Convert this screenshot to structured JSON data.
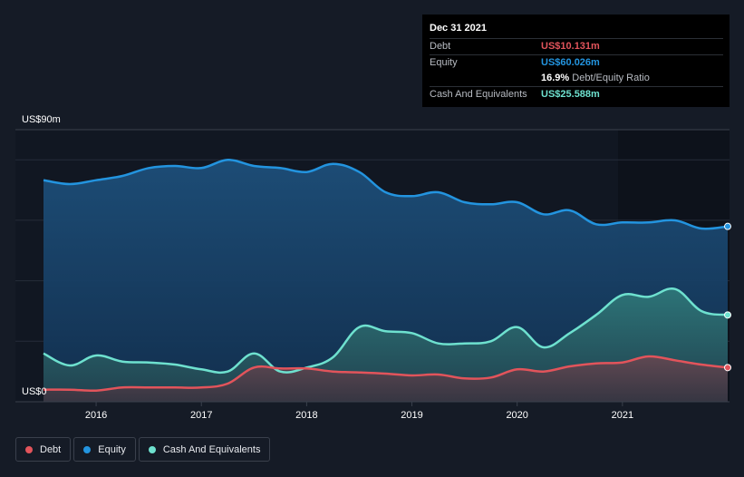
{
  "tooltip": {
    "date": "Dec 31 2021",
    "debt_label": "Debt",
    "debt_value": "US$10.131m",
    "equity_label": "Equity",
    "equity_value": "US$60.026m",
    "ratio_value": "16.9%",
    "ratio_label": "Debt/Equity Ratio",
    "cash_label": "Cash And Equivalents",
    "cash_value": "US$25.588m"
  },
  "colors": {
    "debt": "#e2545b",
    "equity": "#2394df",
    "cash": "#6ee1cf",
    "background": "#151b26"
  },
  "legend": [
    {
      "key": "debt",
      "label": "Debt",
      "color": "#e2545b"
    },
    {
      "key": "equity",
      "label": "Equity",
      "color": "#2394df"
    },
    {
      "key": "cash",
      "label": "Cash And Equivalents",
      "color": "#6ee1cf"
    }
  ],
  "chart_data": {
    "type": "area",
    "title": "",
    "xlabel": "",
    "ylabel": "",
    "y_axis_top_label": "US$90m",
    "y_axis_bottom_label": "US$0",
    "ylim": [
      0,
      90
    ],
    "xlim": [
      2015.5,
      2022.0
    ],
    "x_tick_labels": [
      "2016",
      "2017",
      "2018",
      "2019",
      "2020",
      "2021"
    ],
    "grid": true,
    "legend_position": "bottom-left",
    "series": [
      {
        "name": "Equity",
        "key": "equity",
        "points": [
          [
            2015.5,
            73.3
          ],
          [
            2015.75,
            72.0
          ],
          [
            2016.0,
            73.3
          ],
          [
            2016.25,
            74.7
          ],
          [
            2016.5,
            77.3
          ],
          [
            2016.75,
            78.0
          ],
          [
            2017.0,
            77.3
          ],
          [
            2017.25,
            80.0
          ],
          [
            2017.5,
            78.0
          ],
          [
            2017.75,
            77.3
          ],
          [
            2018.0,
            76.0
          ],
          [
            2018.25,
            78.7
          ],
          [
            2018.5,
            76.0
          ],
          [
            2018.75,
            69.3
          ],
          [
            2019.0,
            68.0
          ],
          [
            2019.25,
            69.3
          ],
          [
            2019.5,
            66.0
          ],
          [
            2019.75,
            65.3
          ],
          [
            2020.0,
            66.0
          ],
          [
            2020.25,
            62.0
          ],
          [
            2020.5,
            63.3
          ],
          [
            2020.75,
            58.7
          ],
          [
            2021.0,
            59.3
          ],
          [
            2021.25,
            59.3
          ],
          [
            2021.5,
            60.0
          ],
          [
            2021.75,
            57.3
          ],
          [
            2022.0,
            58.0
          ]
        ]
      },
      {
        "name": "Cash And Equivalents",
        "key": "cash",
        "points": [
          [
            2015.5,
            16.0
          ],
          [
            2015.75,
            12.0
          ],
          [
            2016.0,
            15.3
          ],
          [
            2016.25,
            13.3
          ],
          [
            2016.5,
            13.0
          ],
          [
            2016.75,
            12.3
          ],
          [
            2017.0,
            10.7
          ],
          [
            2017.25,
            10.0
          ],
          [
            2017.5,
            16.0
          ],
          [
            2017.75,
            10.0
          ],
          [
            2018.0,
            11.3
          ],
          [
            2018.25,
            14.7
          ],
          [
            2018.5,
            24.7
          ],
          [
            2018.75,
            23.3
          ],
          [
            2019.0,
            22.7
          ],
          [
            2019.25,
            19.3
          ],
          [
            2019.5,
            19.3
          ],
          [
            2019.75,
            20.0
          ],
          [
            2020.0,
            24.7
          ],
          [
            2020.25,
            18.0
          ],
          [
            2020.5,
            22.7
          ],
          [
            2020.75,
            28.7
          ],
          [
            2021.0,
            35.3
          ],
          [
            2021.25,
            34.7
          ],
          [
            2021.5,
            37.3
          ],
          [
            2021.75,
            30.0
          ],
          [
            2022.0,
            28.7
          ]
        ]
      },
      {
        "name": "Debt",
        "key": "debt",
        "points": [
          [
            2015.5,
            4.0
          ],
          [
            2015.75,
            4.0
          ],
          [
            2016.0,
            3.7
          ],
          [
            2016.25,
            4.7
          ],
          [
            2016.5,
            4.7
          ],
          [
            2016.75,
            4.7
          ],
          [
            2017.0,
            4.7
          ],
          [
            2017.25,
            6.0
          ],
          [
            2017.5,
            11.3
          ],
          [
            2017.75,
            11.0
          ],
          [
            2018.0,
            11.0
          ],
          [
            2018.25,
            10.0
          ],
          [
            2018.5,
            9.7
          ],
          [
            2018.75,
            9.3
          ],
          [
            2019.0,
            8.7
          ],
          [
            2019.25,
            9.0
          ],
          [
            2019.5,
            7.7
          ],
          [
            2019.75,
            8.0
          ],
          [
            2020.0,
            10.7
          ],
          [
            2020.25,
            10.0
          ],
          [
            2020.5,
            11.7
          ],
          [
            2020.75,
            12.7
          ],
          [
            2021.0,
            13.0
          ],
          [
            2021.25,
            15.0
          ],
          [
            2021.5,
            13.7
          ],
          [
            2021.75,
            12.3
          ],
          [
            2022.0,
            11.3
          ]
        ]
      }
    ]
  }
}
